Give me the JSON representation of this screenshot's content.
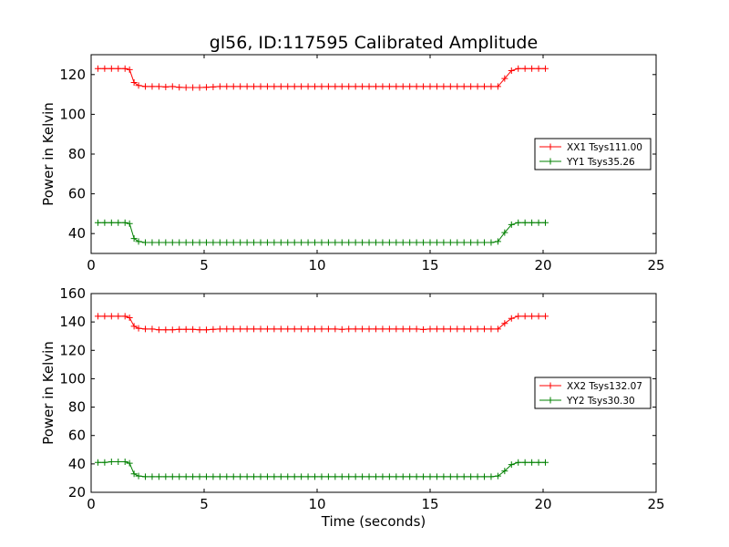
{
  "figure": {
    "title": "gl56, ID:117595 Calibrated Amplitude",
    "xlabel": "Time (seconds)"
  },
  "colors": {
    "XX": "#ff0000",
    "YY": "#008000"
  },
  "chart_data": [
    {
      "type": "line",
      "title": "gl56, ID:117595 Calibrated Amplitude",
      "ylabel": "Power in Kelvin",
      "xlabel": "",
      "xlim": [
        0,
        25
      ],
      "ylim": [
        30,
        130
      ],
      "xticks": [
        0,
        5,
        10,
        15,
        20,
        25
      ],
      "yticks": [
        40,
        60,
        80,
        100,
        120
      ],
      "grid": false,
      "legend": "center-right",
      "series": [
        {
          "name": "XX1 Tsys111.00",
          "color": "#ff0000",
          "x": [
            0.3,
            0.6,
            0.9,
            1.2,
            1.5,
            1.7,
            1.9,
            2.1,
            2.4,
            2.7,
            3.0,
            3.3,
            3.6,
            3.9,
            4.2,
            4.5,
            4.8,
            5.1,
            5.4,
            5.7,
            6.0,
            6.3,
            6.6,
            6.9,
            7.2,
            7.5,
            7.8,
            8.1,
            8.4,
            8.7,
            9.0,
            9.3,
            9.6,
            9.9,
            10.2,
            10.5,
            10.8,
            11.1,
            11.4,
            11.7,
            12.0,
            12.3,
            12.6,
            12.9,
            13.2,
            13.5,
            13.8,
            14.1,
            14.4,
            14.7,
            15.0,
            15.3,
            15.6,
            15.9,
            16.2,
            16.5,
            16.8,
            17.1,
            17.4,
            17.7,
            18.0,
            18.3,
            18.6,
            18.9,
            19.2,
            19.5,
            19.8,
            20.1
          ],
          "y": [
            123,
            123,
            123,
            123,
            123,
            122.5,
            116,
            114.5,
            114,
            114,
            114,
            113.8,
            114,
            113.6,
            113.5,
            113.5,
            113.5,
            113.6,
            113.8,
            114,
            114,
            114,
            114,
            114,
            114,
            114,
            114,
            114,
            114,
            114,
            114,
            114,
            114,
            114,
            114,
            114,
            114,
            114,
            114,
            114,
            114,
            114,
            114,
            114,
            114,
            114,
            114,
            114,
            114,
            114,
            114,
            114,
            114,
            114,
            114,
            114,
            114,
            114,
            114,
            114,
            114,
            118,
            122,
            123,
            123,
            123,
            123,
            123
          ]
        },
        {
          "name": "YY1 Tsys35.26",
          "color": "#008000",
          "x": [
            0.3,
            0.6,
            0.9,
            1.2,
            1.5,
            1.7,
            1.9,
            2.1,
            2.4,
            2.7,
            3.0,
            3.3,
            3.6,
            3.9,
            4.2,
            4.5,
            4.8,
            5.1,
            5.4,
            5.7,
            6.0,
            6.3,
            6.6,
            6.9,
            7.2,
            7.5,
            7.8,
            8.1,
            8.4,
            8.7,
            9.0,
            9.3,
            9.6,
            9.9,
            10.2,
            10.5,
            10.8,
            11.1,
            11.4,
            11.7,
            12.0,
            12.3,
            12.6,
            12.9,
            13.2,
            13.5,
            13.8,
            14.1,
            14.4,
            14.7,
            15.0,
            15.3,
            15.6,
            15.9,
            16.2,
            16.5,
            16.8,
            17.1,
            17.4,
            17.7,
            18.0,
            18.3,
            18.6,
            18.9,
            19.2,
            19.5,
            19.8,
            20.1
          ],
          "y": [
            45.5,
            45.5,
            45.5,
            45.5,
            45.5,
            45,
            37.5,
            36,
            35.5,
            35.5,
            35.5,
            35.5,
            35.5,
            35.5,
            35.5,
            35.5,
            35.5,
            35.5,
            35.5,
            35.5,
            35.5,
            35.5,
            35.5,
            35.5,
            35.5,
            35.5,
            35.5,
            35.5,
            35.5,
            35.5,
            35.5,
            35.5,
            35.5,
            35.5,
            35.5,
            35.5,
            35.5,
            35.5,
            35.5,
            35.5,
            35.5,
            35.5,
            35.5,
            35.5,
            35.5,
            35.5,
            35.5,
            35.5,
            35.5,
            35.5,
            35.5,
            35.5,
            35.5,
            35.5,
            35.5,
            35.5,
            35.5,
            35.5,
            35.5,
            35.5,
            36,
            40.5,
            44.5,
            45.5,
            45.5,
            45.5,
            45.5,
            45.5
          ]
        }
      ]
    },
    {
      "type": "line",
      "title": "",
      "ylabel": "Power in Kelvin",
      "xlabel": "Time (seconds)",
      "xlim": [
        0,
        25
      ],
      "ylim": [
        20,
        160
      ],
      "xticks": [
        0,
        5,
        10,
        15,
        20,
        25
      ],
      "yticks": [
        20,
        40,
        60,
        80,
        100,
        120,
        140,
        160
      ],
      "grid": false,
      "legend": "center-right",
      "series": [
        {
          "name": "XX2 Tsys132.07",
          "color": "#ff0000",
          "x": [
            0.3,
            0.6,
            0.9,
            1.2,
            1.5,
            1.7,
            1.9,
            2.1,
            2.4,
            2.7,
            3.0,
            3.3,
            3.6,
            3.9,
            4.2,
            4.5,
            4.8,
            5.1,
            5.4,
            5.7,
            6.0,
            6.3,
            6.6,
            6.9,
            7.2,
            7.5,
            7.8,
            8.1,
            8.4,
            8.7,
            9.0,
            9.3,
            9.6,
            9.9,
            10.2,
            10.5,
            10.8,
            11.1,
            11.4,
            11.7,
            12.0,
            12.3,
            12.6,
            12.9,
            13.2,
            13.5,
            13.8,
            14.1,
            14.4,
            14.7,
            15.0,
            15.3,
            15.6,
            15.9,
            16.2,
            16.5,
            16.8,
            17.1,
            17.4,
            17.7,
            18.0,
            18.3,
            18.6,
            18.9,
            19.2,
            19.5,
            19.8,
            20.1
          ],
          "y": [
            144,
            144,
            144,
            144,
            144,
            143,
            137,
            135.5,
            135,
            135,
            134.5,
            134.5,
            134.5,
            134.8,
            134.8,
            134.8,
            134.5,
            134.5,
            134.8,
            135,
            135,
            135,
            135,
            135,
            135,
            135,
            135,
            135,
            135,
            135,
            135,
            135,
            135,
            135,
            135,
            135,
            135,
            134.8,
            135,
            135,
            135,
            135,
            135,
            135,
            135,
            135,
            135,
            135,
            135,
            134.7,
            135,
            135,
            135,
            135,
            135,
            135,
            135,
            135,
            135,
            135,
            135,
            139,
            142.5,
            144,
            144,
            144,
            144,
            144
          ]
        },
        {
          "name": "YY2 Tsys30.30",
          "color": "#008000",
          "x": [
            0.3,
            0.6,
            0.9,
            1.2,
            1.5,
            1.7,
            1.9,
            2.1,
            2.4,
            2.7,
            3.0,
            3.3,
            3.6,
            3.9,
            4.2,
            4.5,
            4.8,
            5.1,
            5.4,
            5.7,
            6.0,
            6.3,
            6.6,
            6.9,
            7.2,
            7.5,
            7.8,
            8.1,
            8.4,
            8.7,
            9.0,
            9.3,
            9.6,
            9.9,
            10.2,
            10.5,
            10.8,
            11.1,
            11.4,
            11.7,
            12.0,
            12.3,
            12.6,
            12.9,
            13.2,
            13.5,
            13.8,
            14.1,
            14.4,
            14.7,
            15.0,
            15.3,
            15.6,
            15.9,
            16.2,
            16.5,
            16.8,
            17.1,
            17.4,
            17.7,
            18.0,
            18.3,
            18.6,
            18.9,
            19.2,
            19.5,
            19.8,
            20.1
          ],
          "y": [
            41,
            41,
            41.5,
            41.5,
            41.5,
            40.5,
            33,
            31.5,
            31,
            31,
            31,
            31,
            31,
            31,
            31,
            31,
            31,
            31,
            31,
            31,
            31,
            31,
            31,
            31,
            31,
            31,
            31,
            31,
            31,
            31,
            31,
            31,
            31,
            31,
            31,
            31,
            31,
            31,
            31,
            31,
            31,
            31,
            31,
            31,
            31,
            31,
            31,
            31,
            31,
            31,
            31,
            31,
            31,
            31,
            31,
            31,
            31,
            31,
            31,
            31,
            31.5,
            35,
            39.5,
            41,
            41,
            41,
            41,
            41
          ]
        }
      ]
    }
  ]
}
